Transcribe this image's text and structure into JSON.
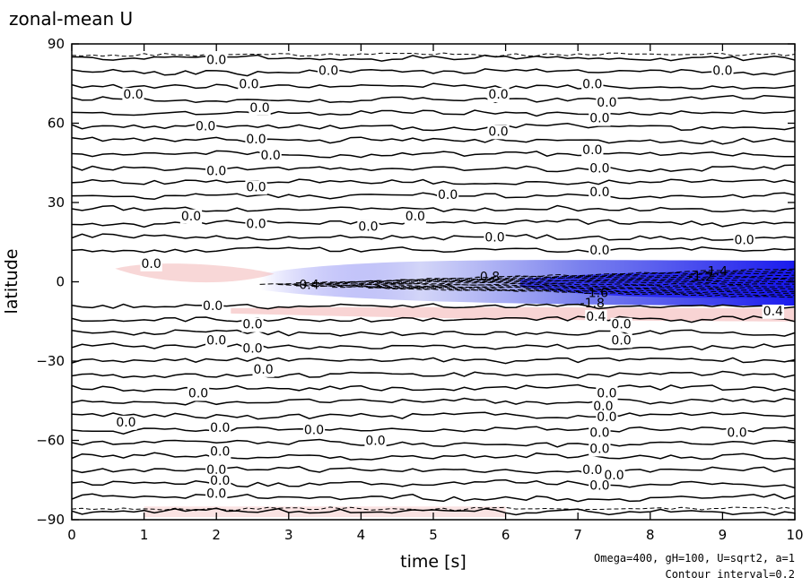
{
  "chart_data": {
    "type": "heatmap",
    "title": "zonal-mean U",
    "xlabel": "time [s]",
    "ylabel": "latitude",
    "xlim": [
      0,
      10
    ],
    "ylim": [
      -90,
      90
    ],
    "x_ticks": [
      "0",
      "1",
      "2",
      "3",
      "4",
      "5",
      "6",
      "7",
      "8",
      "9",
      "10"
    ],
    "y_ticks": [
      "90",
      "60",
      "30",
      "0",
      "−30",
      "−60",
      "−90"
    ],
    "annotations": [
      "Omega=400, gH=100, U=sqrt2, a=1",
      "Contour interval=0.2"
    ],
    "contour_interval": 0.2,
    "colors": {
      "negative": "#1a1aee",
      "positive": "#f2b0b0",
      "zero": "#ffffff",
      "contour": "#000000"
    },
    "contour_labels": [
      {
        "text": "0.0",
        "x": 2.0,
        "y": 84
      },
      {
        "text": "0.0",
        "x": 3.55,
        "y": 80
      },
      {
        "text": "0.0",
        "x": 9.0,
        "y": 80
      },
      {
        "text": "0.0",
        "x": 2.45,
        "y": 75
      },
      {
        "text": "0.0",
        "x": 5.9,
        "y": 71
      },
      {
        "text": "0.0",
        "x": 7.2,
        "y": 75
      },
      {
        "text": "0.0",
        "x": 0.85,
        "y": 71
      },
      {
        "text": "0.0",
        "x": 7.4,
        "y": 68
      },
      {
        "text": "0.0",
        "x": 2.6,
        "y": 66
      },
      {
        "text": "0.0",
        "x": 7.3,
        "y": 62
      },
      {
        "text": "0.0",
        "x": 1.85,
        "y": 59
      },
      {
        "text": "0.0",
        "x": 2.55,
        "y": 54
      },
      {
        "text": "0.0",
        "x": 5.9,
        "y": 57
      },
      {
        "text": "0.0",
        "x": 2.75,
        "y": 48
      },
      {
        "text": "0.0",
        "x": 7.2,
        "y": 50
      },
      {
        "text": "0.0",
        "x": 2.0,
        "y": 42
      },
      {
        "text": "0.0",
        "x": 7.3,
        "y": 43
      },
      {
        "text": "0.0",
        "x": 2.55,
        "y": 36
      },
      {
        "text": "0.0",
        "x": 5.2,
        "y": 33
      },
      {
        "text": "0.0",
        "x": 7.3,
        "y": 34
      },
      {
        "text": "0.0",
        "x": 1.65,
        "y": 25
      },
      {
        "text": "0.0",
        "x": 2.55,
        "y": 22
      },
      {
        "text": "0.0",
        "x": 4.1,
        "y": 21
      },
      {
        "text": "0.0",
        "x": 4.75,
        "y": 25
      },
      {
        "text": "0.0",
        "x": 5.85,
        "y": 17
      },
      {
        "text": "0.0",
        "x": 7.3,
        "y": 12
      },
      {
        "text": "0.0",
        "x": 9.3,
        "y": 16
      },
      {
        "text": "0.0",
        "x": 1.1,
        "y": 7
      },
      {
        "text": "-0.4",
        "x": 3.25,
        "y": -1
      },
      {
        "text": "-0.8",
        "x": 5.75,
        "y": 2
      },
      {
        "text": "-1.4",
        "x": 8.9,
        "y": 4
      },
      {
        "text": "-1.2",
        "x": 8.7,
        "y": 2
      },
      {
        "text": "-1.6",
        "x": 7.25,
        "y": -4
      },
      {
        "text": "-1.8",
        "x": 7.2,
        "y": -8
      },
      {
        "text": "0.0",
        "x": 1.95,
        "y": -9
      },
      {
        "text": "0.4",
        "x": 7.25,
        "y": -13
      },
      {
        "text": "0.0",
        "x": 7.6,
        "y": -16
      },
      {
        "text": "0.4",
        "x": 9.7,
        "y": -11
      },
      {
        "text": "0.0",
        "x": 2.5,
        "y": -16
      },
      {
        "text": "0.0",
        "x": 2.0,
        "y": -22
      },
      {
        "text": "0.0",
        "x": 2.5,
        "y": -25
      },
      {
        "text": "0.0",
        "x": 7.6,
        "y": -22
      },
      {
        "text": "0.0",
        "x": 2.65,
        "y": -33
      },
      {
        "text": "0.0",
        "x": 1.75,
        "y": -42
      },
      {
        "text": "0.0",
        "x": 7.4,
        "y": -42
      },
      {
        "text": "0.0",
        "x": 7.35,
        "y": -47
      },
      {
        "text": "0.0",
        "x": 0.75,
        "y": -53
      },
      {
        "text": "0.0",
        "x": 2.05,
        "y": -55
      },
      {
        "text": "0.0",
        "x": 7.4,
        "y": -51
      },
      {
        "text": "0.0",
        "x": 3.35,
        "y": -56
      },
      {
        "text": "0.0",
        "x": 4.2,
        "y": -60
      },
      {
        "text": "0.0",
        "x": 7.3,
        "y": -57
      },
      {
        "text": "0.0",
        "x": 9.2,
        "y": -57
      },
      {
        "text": "0.0",
        "x": 2.05,
        "y": -64
      },
      {
        "text": "0.0",
        "x": 7.3,
        "y": -63
      },
      {
        "text": "0.0",
        "x": 2.0,
        "y": -71
      },
      {
        "text": "0.0",
        "x": 2.05,
        "y": -75
      },
      {
        "text": "0.0",
        "x": 7.2,
        "y": -71
      },
      {
        "text": "0.0",
        "x": 7.5,
        "y": -73
      },
      {
        "text": "0.0",
        "x": 2.0,
        "y": -80
      },
      {
        "text": "0.0",
        "x": 7.3,
        "y": -77
      }
    ]
  }
}
